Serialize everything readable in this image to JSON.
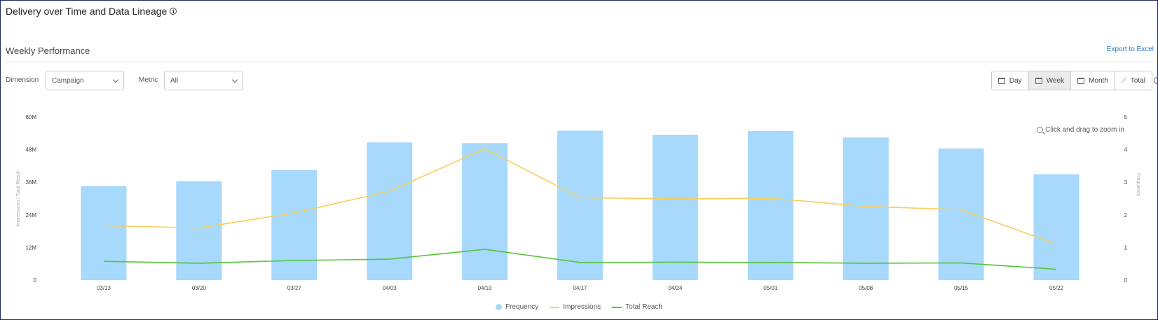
{
  "page": {
    "title": "Delivery over Time and Data Lineage",
    "section_title": "Weekly Performance",
    "export_label": "Export to Excel"
  },
  "controls": {
    "dimension_label": "Dimension",
    "dimension_value": "Campaign",
    "metric_label": "Metric",
    "metric_value": "All",
    "periods": [
      {
        "label": "Day",
        "icon": "calendar-icon",
        "active": false
      },
      {
        "label": "Week",
        "icon": "calendar-icon",
        "active": true
      },
      {
        "label": "Month",
        "icon": "calendar-icon",
        "active": false
      },
      {
        "label": "Total",
        "icon": "trend-icon",
        "active": false
      }
    ]
  },
  "zoom_hint": "Click and drag to zoom in",
  "chart_data": {
    "type": "bar",
    "categories": [
      "03/13",
      "03/20",
      "03/27",
      "04/03",
      "04/10",
      "04/17",
      "04/24",
      "05/01",
      "05/08",
      "05/15",
      "05/22"
    ],
    "left_axis": {
      "title": "Impressions / Total Reach",
      "ticks": [
        "0",
        "12M",
        "24M",
        "36M",
        "48M",
        "60M"
      ],
      "range": [
        0,
        60000000
      ]
    },
    "right_axis": {
      "title": "Frequency",
      "ticks": [
        "0",
        "1",
        "2",
        "3",
        "4",
        "5"
      ],
      "range": [
        0,
        5
      ]
    },
    "series": [
      {
        "name": "Frequency",
        "type": "bar",
        "axis": "right",
        "color": "#a6d9fb",
        "values": [
          2.88,
          3.03,
          3.37,
          4.22,
          4.2,
          4.58,
          4.45,
          4.57,
          4.37,
          4.03,
          3.24
        ]
      },
      {
        "name": "Impressions",
        "type": "line",
        "axis": "left",
        "color": "#f8cd5a",
        "values": [
          20000000,
          19200000,
          24700000,
          32700000,
          48300000,
          30300000,
          29900000,
          30100000,
          27100000,
          25900000,
          13200000
        ]
      },
      {
        "name": "Total Reach",
        "type": "line",
        "axis": "left",
        "color": "#55c43a",
        "values": [
          6900000,
          6200000,
          7200000,
          7700000,
          11300000,
          6500000,
          6600000,
          6500000,
          6200000,
          6300000,
          4000000
        ]
      }
    ],
    "grid": false,
    "legend_position": "bottom"
  }
}
